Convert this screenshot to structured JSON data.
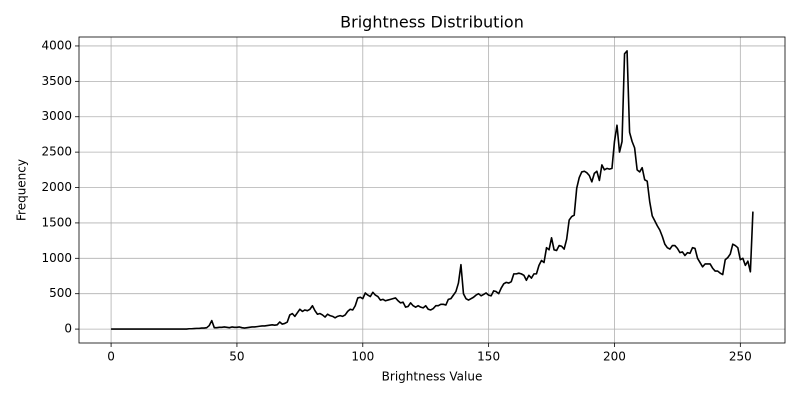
{
  "chart_data": {
    "type": "line",
    "title": "Brightness Distribution",
    "xlabel": "Brightness Value",
    "ylabel": "Frequency",
    "color": "#000000",
    "grid": true,
    "xlim": [
      -12.75,
      267.75
    ],
    "xticks": [
      0,
      50,
      100,
      150,
      200,
      250
    ],
    "ylim": [
      -196.5,
      4126.5
    ],
    "yticks": [
      0,
      500,
      1000,
      1500,
      2000,
      2500,
      3000,
      3500,
      4000
    ],
    "x": [
      0,
      1,
      2,
      3,
      4,
      5,
      6,
      7,
      8,
      9,
      10,
      11,
      12,
      13,
      14,
      15,
      16,
      17,
      18,
      19,
      20,
      21,
      22,
      23,
      24,
      25,
      26,
      27,
      28,
      29,
      30,
      31,
      32,
      33,
      34,
      35,
      36,
      37,
      38,
      39,
      40,
      41,
      42,
      43,
      44,
      45,
      46,
      47,
      48,
      49,
      50,
      51,
      52,
      53,
      54,
      55,
      56,
      57,
      58,
      59,
      60,
      61,
      62,
      63,
      64,
      65,
      66,
      67,
      68,
      69,
      70,
      71,
      72,
      73,
      74,
      75,
      76,
      77,
      78,
      79,
      80,
      81,
      82,
      83,
      84,
      85,
      86,
      87,
      88,
      89,
      90,
      91,
      92,
      93,
      94,
      95,
      96,
      97,
      98,
      99,
      100,
      101,
      102,
      103,
      104,
      105,
      106,
      107,
      108,
      109,
      110,
      111,
      112,
      113,
      114,
      115,
      116,
      117,
      118,
      119,
      120,
      121,
      122,
      123,
      124,
      125,
      126,
      127,
      128,
      129,
      130,
      131,
      132,
      133,
      134,
      135,
      136,
      137,
      138,
      139,
      140,
      141,
      142,
      143,
      144,
      145,
      146,
      147,
      148,
      149,
      150,
      151,
      152,
      153,
      154,
      155,
      156,
      157,
      158,
      159,
      160,
      161,
      162,
      163,
      164,
      165,
      166,
      167,
      168,
      169,
      170,
      171,
      172,
      173,
      174,
      175,
      176,
      177,
      178,
      179,
      180,
      181,
      182,
      183,
      184,
      185,
      186,
      187,
      188,
      189,
      190,
      191,
      192,
      193,
      194,
      195,
      196,
      197,
      198,
      199,
      200,
      201,
      202,
      203,
      204,
      205,
      206,
      207,
      208,
      209,
      210,
      211,
      212,
      213,
      214,
      215,
      216,
      217,
      218,
      219,
      220,
      221,
      222,
      223,
      224,
      225,
      226,
      227,
      228,
      229,
      230,
      231,
      232,
      233,
      234,
      235,
      236,
      237,
      238,
      239,
      240,
      241,
      242,
      243,
      244,
      245,
      246,
      247,
      248,
      249,
      250,
      251,
      252,
      253,
      254,
      255
    ],
    "values": [
      0,
      0,
      0,
      0,
      0,
      0,
      0,
      0,
      0,
      0,
      0,
      0,
      0,
      0,
      0,
      0,
      0,
      0,
      0,
      0,
      0,
      0,
      0,
      0,
      0,
      0,
      0,
      0,
      0,
      0,
      0,
      5,
      5,
      8,
      10,
      10,
      15,
      15,
      20,
      50,
      120,
      20,
      20,
      25,
      25,
      30,
      25,
      20,
      30,
      25,
      25,
      30,
      20,
      15,
      20,
      25,
      30,
      30,
      35,
      40,
      45,
      45,
      50,
      55,
      60,
      55,
      60,
      100,
      70,
      80,
      100,
      200,
      220,
      180,
      230,
      280,
      250,
      270,
      260,
      280,
      330,
      260,
      210,
      220,
      200,
      170,
      210,
      190,
      180,
      160,
      180,
      190,
      180,
      200,
      250,
      280,
      270,
      330,
      440,
      450,
      430,
      510,
      480,
      460,
      520,
      480,
      460,
      410,
      420,
      400,
      410,
      420,
      430,
      440,
      400,
      370,
      380,
      310,
      320,
      370,
      330,
      310,
      330,
      310,
      300,
      330,
      280,
      270,
      290,
      330,
      330,
      350,
      350,
      340,
      420,
      430,
      480,
      530,
      650,
      910,
      500,
      430,
      410,
      430,
      450,
      480,
      500,
      470,
      490,
      510,
      480,
      470,
      540,
      530,
      500,
      580,
      640,
      660,
      650,
      670,
      780,
      780,
      790,
      780,
      760,
      690,
      760,
      720,
      780,
      780,
      900,
      970,
      940,
      1150,
      1120,
      1290,
      1120,
      1110,
      1180,
      1170,
      1130,
      1270,
      1540,
      1590,
      1610,
      1990,
      2140,
      2220,
      2230,
      2210,
      2170,
      2080,
      2200,
      2230,
      2100,
      2320,
      2250,
      2270,
      2260,
      2270,
      2650,
      2880,
      2500,
      2650,
      3890,
      3930,
      2780,
      2650,
      2560,
      2250,
      2220,
      2280,
      2110,
      2090,
      1800,
      1600,
      1530,
      1460,
      1400,
      1310,
      1200,
      1150,
      1130,
      1180,
      1180,
      1140,
      1080,
      1090,
      1040,
      1080,
      1070,
      1150,
      1140,
      1000,
      940,
      880,
      920,
      920,
      920,
      860,
      820,
      820,
      790,
      770,
      980,
      1010,
      1060,
      1200,
      1180,
      1150,
      980,
      1000,
      900,
      960,
      810,
      1660
    ]
  }
}
